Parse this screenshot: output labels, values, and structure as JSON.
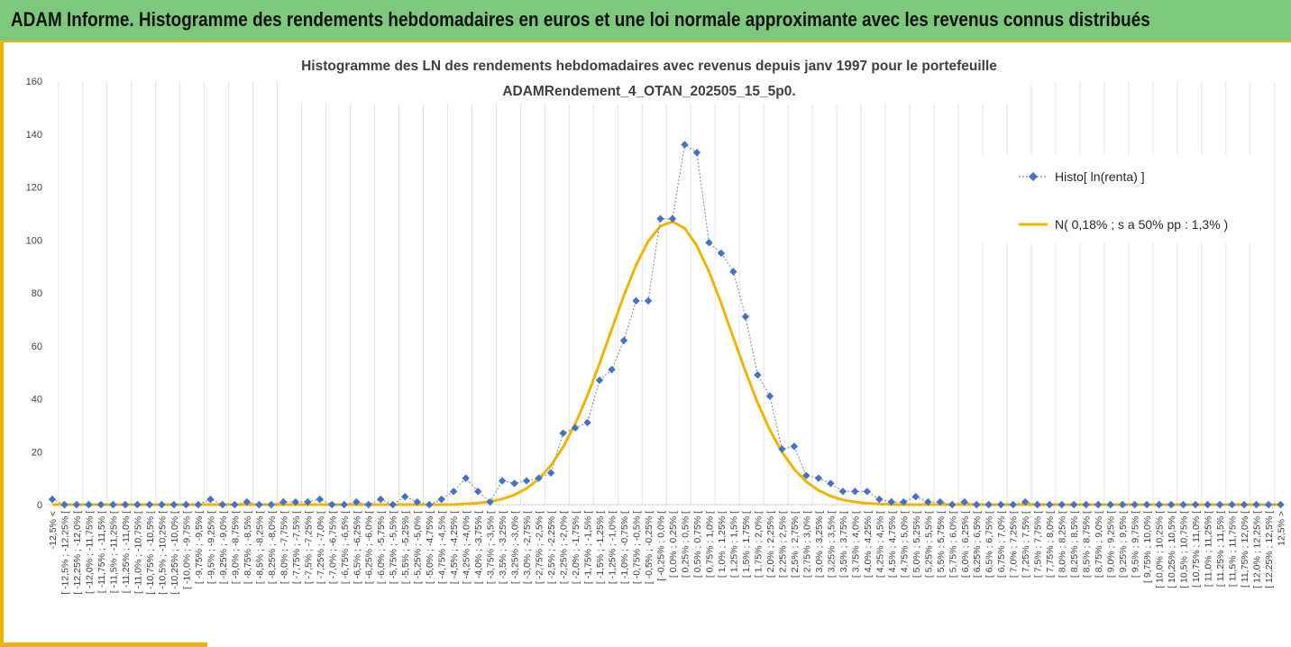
{
  "banner": {
    "title": "ADAM Informe. Histogramme des rendements hebdomadaires en euros et une loi normale approximante avec les revenus connus distribués"
  },
  "colors": {
    "banner_bg": "#7dc87d",
    "accent": "#f0b400",
    "histo_marker": "#4472c4",
    "normal_line": "#f0b400"
  },
  "chart_data": {
    "type": "line",
    "title_lines": [
      "Histogramme des LN des rendements hebdomadaires avec revenus depuis janv 1997 pour le portefeuille",
      "ADAMRendement_4_OTAN_202505_15_5p0."
    ],
    "xlabel": "",
    "ylabel": "",
    "ylim": [
      0,
      160
    ],
    "yticks": [
      0,
      20,
      40,
      60,
      80,
      100,
      120,
      140,
      160
    ],
    "grid": true,
    "legend_position": "right",
    "categories": [
      "-12,5% <",
      "[ -12,5% ; -12,25% [",
      "[ -12,25% ; -12,0% [",
      "[ -12,0% ; -11,75% [",
      "[ -11,75% ; -11,5% [",
      "[ -11,5% ; -11,25% [",
      "[ -11,25% ; -11,0% [",
      "[ -11,0% ; -10,75% [",
      "[ -10,75% ; -10,5% [",
      "[ -10,5% ; -10,25% [",
      "[ -10,25% ; -10,0% [",
      "[ -10,0% ; -9,75% [",
      "[ -9,75% ; -9,5% [",
      "[ -9,5% ; -9,25% [",
      "[ -9,25% ; -9,0% [",
      "[ -9,0% ; -8,75% [",
      "[ -8,75% ; -8,5% [",
      "[ -8,5% ; -8,25% [",
      "[ -8,25% ; -8,0% [",
      "[ -8,0% ; -7,75% [",
      "[ -7,75% ; -7,5% [",
      "[ -7,5% ; -7,25% [",
      "[ -7,25% ; -7,0% [",
      "[ -7,0% ; -6,75% [",
      "[ -6,75% ; -6,5% [",
      "[ -6,5% ; -6,25% [",
      "[ -6,25% ; -6,0% [",
      "[ -6,0% ; -5,75% [",
      "[ -5,75% ; -5,5% [",
      "[ -5,5% ; -5,25% [",
      "[ -5,25% ; -5,0% [",
      "[ -5,0% ; -4,75% [",
      "[ -4,75% ; -4,5% [",
      "[ -4,5% ; -4,25% [",
      "[ -4,25% ; -4,0% [",
      "[ -4,0% ; -3,75% [",
      "[ -3,75% ; -3,5% [",
      "[ -3,5% ; -3,25% [",
      "[ -3,25% ; -3,0% [",
      "[ -3,0% ; -2,75% [",
      "[ -2,75% ; -2,5% [",
      "[ -2,5% ; -2,25% [",
      "[ -2,25% ; -2,0% [",
      "[ -2,0% ; -1,75% [",
      "[ -1,75% ; -1,5% [",
      "[ -1,5% ; -1,25% [",
      "[ -1,25% ; -1,0% [",
      "[ -1,0% ; -0,75% [",
      "[ -0,75% ; -0,5% [",
      "[ -0,5% ; -0,25% [",
      "[ -0,25% ; 0,0% [",
      "[ 0,0% ; 0,25% [",
      "[ 0,25% ; 0,5% [",
      "[ 0,5% ; 0,75% [",
      "[ 0,75% ; 1,0% [",
      "[ 1,0% ; 1,25% [",
      "[ 1,25% ; 1,5% [",
      "[ 1,5% ; 1,75% [",
      "[ 1,75% ; 2,0% [",
      "[ 2,0% ; 2,25% [",
      "[ 2,25% ; 2,5% [",
      "[ 2,5% ; 2,75% [",
      "[ 2,75% ; 3,0% [",
      "[ 3,0% ; 3,25% [",
      "[ 3,25% ; 3,5% [",
      "[ 3,5% ; 3,75% [",
      "[ 3,75% ; 4,0% [",
      "[ 4,0% ; 4,25% [",
      "[ 4,25% ; 4,5% [",
      "[ 4,5% ; 4,75% [",
      "[ 4,75% ; 5,0% [",
      "[ 5,0% ; 5,25% [",
      "[ 5,25% ; 5,5% [",
      "[ 5,5% ; 5,75% [",
      "[ 5,75% ; 6,0% [",
      "[ 6,0% ; 6,25% [",
      "[ 6,25% ; 6,5% [",
      "[ 6,5% ; 6,75% [",
      "[ 6,75% ; 7,0% [",
      "[ 7,0% ; 7,25% [",
      "[ 7,25% ; 7,5% [",
      "[ 7,5% ; 7,75% [",
      "[ 7,75% ; 8,0% [",
      "[ 8,0% ; 8,25% [",
      "[ 8,25% ; 8,5% [",
      "[ 8,5% ; 8,75% [",
      "[ 8,75% ; 9,0% [",
      "[ 9,0% ; 9,25% [",
      "[ 9,25% ; 9,5% [",
      "[ 9,5% ; 9,75% [",
      "[ 9,75% ; 10,0% [",
      "[ 10,0% ; 10,25% [",
      "[ 10,25% ; 10,5% [",
      "[ 10,5% ; 10,75% [",
      "[ 10,75% ; 11,0% [",
      "[ 11,0% ; 11,25% [",
      "[ 11,25% ; 11,5% [",
      "[ 11,5% ; 11,75% [",
      "[ 11,75% ; 12,0% [",
      "[ 12,0% ; 12,25% [",
      "[ 12,25% ; 12,5% [",
      "12,5% >"
    ],
    "series": [
      {
        "name": "Histo[ ln(renta) ]",
        "style": "dotted-line-diamond-markers",
        "values": [
          2,
          0,
          0,
          0,
          0,
          0,
          0,
          0,
          0,
          0,
          0,
          0,
          0,
          2,
          0,
          0,
          1,
          0,
          0,
          1,
          1,
          1,
          2,
          0,
          0,
          1,
          0,
          2,
          0,
          3,
          1,
          0,
          2,
          5,
          10,
          5,
          1,
          9,
          8,
          9,
          10,
          12,
          27,
          29,
          31,
          47,
          51,
          62,
          77,
          77,
          108,
          108,
          136,
          133,
          99,
          95,
          88,
          71,
          49,
          41,
          21,
          22,
          11,
          10,
          8,
          5,
          5,
          5,
          2,
          1,
          1,
          3,
          1,
          1,
          0,
          1,
          0,
          0,
          0,
          0,
          1,
          0,
          0,
          0,
          0,
          0,
          0,
          0,
          0,
          0,
          0,
          0,
          0,
          0,
          0,
          0,
          0,
          0,
          0,
          0,
          0,
          0
        ]
      },
      {
        "name": "N( 0,18% ; s a 50% pp : 1,3% )",
        "style": "solid-line",
        "values": [
          0,
          0,
          0,
          0,
          0,
          0,
          0,
          0,
          0,
          0,
          0,
          0,
          0,
          0,
          0,
          0,
          0,
          0,
          0,
          0,
          0,
          0,
          0,
          0,
          0,
          0,
          0,
          0,
          0,
          0,
          0,
          0,
          0,
          0,
          0.3,
          0.6,
          1.2,
          2.1,
          3.7,
          6.1,
          9.7,
          14.8,
          21.7,
          30.5,
          41.2,
          53.3,
          66.2,
          79.0,
          90.5,
          99.5,
          105.2,
          106.9,
          104.4,
          97.8,
          88.0,
          76.1,
          63.1,
          50.3,
          38.4,
          28.2,
          19.9,
          13.4,
          8.7,
          5.4,
          3.2,
          1.8,
          1.0,
          0.5,
          0.2,
          0.1,
          0,
          0,
          0,
          0,
          0,
          0,
          0,
          0,
          0,
          0,
          0,
          0,
          0,
          0,
          0,
          0,
          0,
          0,
          0,
          0,
          0,
          0,
          0,
          0,
          0,
          0,
          0,
          0,
          0,
          0,
          0,
          0
        ]
      }
    ]
  }
}
